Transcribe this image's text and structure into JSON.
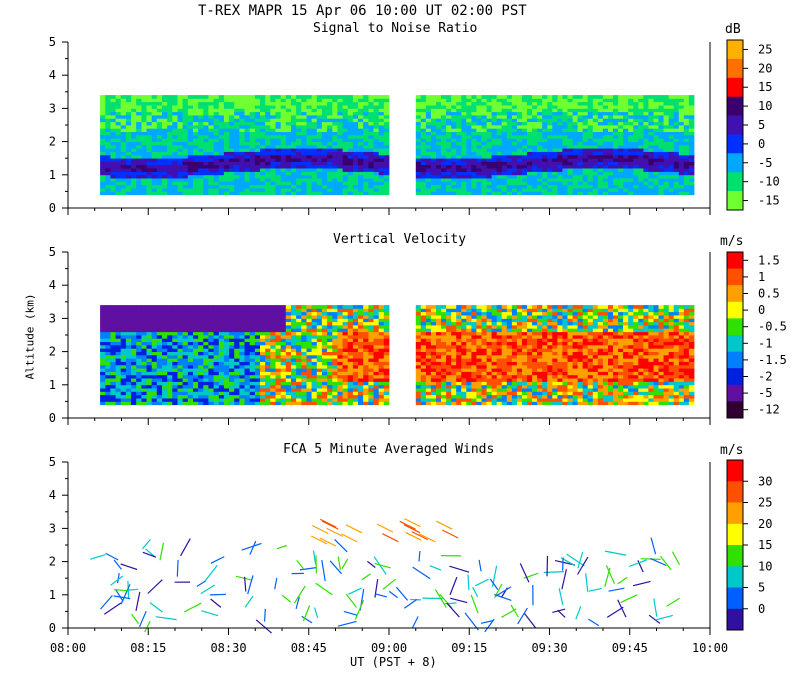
{
  "header": {
    "title": "T-REX   MAPR 15 Apr 06   10:00 UT   02:00   PST"
  },
  "x_axis": {
    "label": "UT   (PST + 8)",
    "ticks": [
      "08:00",
      "08:15",
      "08:30",
      "08:45",
      "09:00",
      "09:15",
      "09:30",
      "09:45",
      "10:00"
    ],
    "range_minutes": [
      480,
      600
    ]
  },
  "y_label": "Altitude (km)",
  "chart_data": [
    {
      "type": "heatmap",
      "title": "Signal to Noise Ratio",
      "unit": "dB",
      "ylim": [
        0,
        5
      ],
      "y_ticks": [
        "0",
        "1",
        "2",
        "3",
        "4",
        "5"
      ],
      "data_gap": [
        "09:00",
        "09:05"
      ],
      "colorbar_labels": [
        "25",
        "20",
        "15",
        "10",
        "5",
        "0",
        "-5",
        "-10",
        "-15"
      ],
      "colorbar_colors": [
        "#ffb000",
        "#ff7000",
        "#ff0000",
        "#3a0070",
        "#4010b0",
        "#0030ff",
        "#00a8ff",
        "#00e070",
        "#70ff30"
      ]
    },
    {
      "type": "heatmap",
      "title": "Vertical Velocity",
      "unit": "m/s",
      "ylim": [
        0,
        5
      ],
      "y_ticks": [
        "0",
        "1",
        "2",
        "3",
        "4",
        "5"
      ],
      "data_gap": [
        "09:00",
        "09:05"
      ],
      "colorbar_labels": [
        "1.5",
        "1",
        "0.5",
        "0",
        "-0.5",
        "-1",
        "-1.5",
        "-2",
        "-5",
        "-12"
      ],
      "colorbar_colors": [
        "#ff0000",
        "#ff5000",
        "#ffa000",
        "#ffff00",
        "#30e000",
        "#00c8c8",
        "#0080ff",
        "#0020e0",
        "#6010a0",
        "#300030"
      ]
    },
    {
      "type": "scatter",
      "title": "FCA 5 Minute Averaged Winds",
      "unit": "m/s",
      "ylim": [
        0,
        5
      ],
      "y_ticks": [
        "0",
        "1",
        "2",
        "3",
        "4",
        "5"
      ],
      "colorbar_labels": [
        "30",
        "25",
        "20",
        "15",
        "10",
        "5",
        "0"
      ],
      "colorbar_colors": [
        "#ff0000",
        "#ff5000",
        "#ffa000",
        "#ffff00",
        "#30e000",
        "#00c8c8",
        "#0060ff",
        "#3010a0"
      ]
    }
  ]
}
